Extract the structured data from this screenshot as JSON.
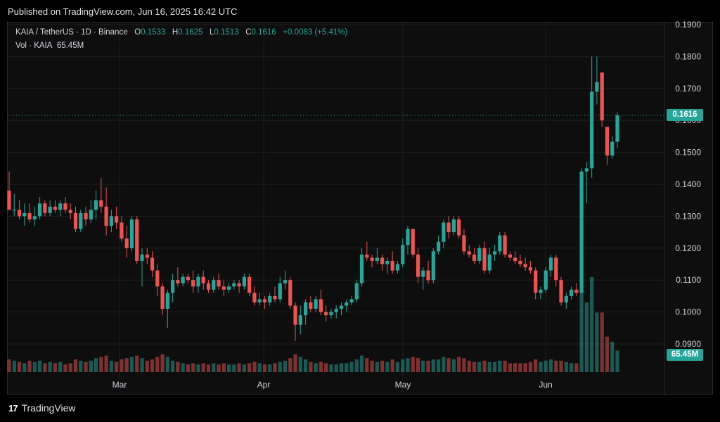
{
  "header": {
    "published": "Published on TradingView.com, Jun 16, 2025 16:42 UTC"
  },
  "legend": {
    "symbol": "KAIA / TetherUS · 1D · Binance",
    "o_label": "O",
    "o": "0.1533",
    "h_label": "H",
    "h": "0.1625",
    "l_label": "L",
    "l": "0.1513",
    "c_label": "C",
    "c": "0.1616",
    "change": "+0.0083 (+5.41%)",
    "vol_label": "Vol · KAIA",
    "vol_value": "65.45M"
  },
  "footer": {
    "brand": "TradingView",
    "logo": "17"
  },
  "colors": {
    "up": "#26a69a",
    "down": "#ef5350",
    "background": "#0e0e0e",
    "grid": "#1f1f1f"
  },
  "chart_data": {
    "type": "candlestick",
    "title": "KAIA / TetherUS · 1D · Binance",
    "y_ticks": [
      "0.1900",
      "0.1800",
      "0.1700",
      "0.1600",
      "0.1500",
      "0.1400",
      "0.1300",
      "0.1200",
      "0.1100",
      "0.1000",
      "0.0900"
    ],
    "ylim": [
      0.085,
      0.1925
    ],
    "x_ticks": [
      "Mar",
      "Apr",
      "May",
      "Jun"
    ],
    "last_price": "0.1616",
    "last_volume": "65.45M",
    "candles_ohlcv": [
      [
        0.138,
        0.144,
        0.133,
        0.132,
        10
      ],
      [
        0.132,
        0.137,
        0.13,
        0.132,
        9
      ],
      [
        0.132,
        0.135,
        0.129,
        0.13,
        8
      ],
      [
        0.13,
        0.134,
        0.127,
        0.131,
        7
      ],
      [
        0.131,
        0.134,
        0.128,
        0.129,
        9
      ],
      [
        0.129,
        0.133,
        0.127,
        0.13,
        8
      ],
      [
        0.13,
        0.136,
        0.129,
        0.134,
        9
      ],
      [
        0.134,
        0.135,
        0.13,
        0.131,
        7
      ],
      [
        0.131,
        0.135,
        0.13,
        0.133,
        8
      ],
      [
        0.133,
        0.135,
        0.131,
        0.132,
        7
      ],
      [
        0.132,
        0.135,
        0.13,
        0.134,
        8
      ],
      [
        0.134,
        0.136,
        0.131,
        0.132,
        6
      ],
      [
        0.132,
        0.134,
        0.129,
        0.131,
        7
      ],
      [
        0.131,
        0.133,
        0.125,
        0.126,
        10
      ],
      [
        0.126,
        0.132,
        0.125,
        0.131,
        9
      ],
      [
        0.131,
        0.133,
        0.127,
        0.129,
        8
      ],
      [
        0.129,
        0.135,
        0.128,
        0.132,
        9
      ],
      [
        0.132,
        0.138,
        0.129,
        0.135,
        11
      ],
      [
        0.135,
        0.142,
        0.131,
        0.133,
        12
      ],
      [
        0.133,
        0.139,
        0.124,
        0.127,
        13
      ],
      [
        0.127,
        0.132,
        0.125,
        0.13,
        9
      ],
      [
        0.13,
        0.133,
        0.126,
        0.128,
        8
      ],
      [
        0.128,
        0.13,
        0.122,
        0.123,
        10
      ],
      [
        0.123,
        0.127,
        0.117,
        0.12,
        11
      ],
      [
        0.12,
        0.13,
        0.119,
        0.129,
        12
      ],
      [
        0.129,
        0.13,
        0.115,
        0.116,
        13
      ],
      [
        0.116,
        0.12,
        0.108,
        0.118,
        11
      ],
      [
        0.118,
        0.12,
        0.115,
        0.117,
        9
      ],
      [
        0.117,
        0.119,
        0.111,
        0.113,
        10
      ],
      [
        0.113,
        0.115,
        0.105,
        0.108,
        12
      ],
      [
        0.108,
        0.109,
        0.099,
        0.101,
        14
      ],
      [
        0.101,
        0.107,
        0.095,
        0.106,
        12
      ],
      [
        0.106,
        0.112,
        0.103,
        0.11,
        9
      ],
      [
        0.11,
        0.114,
        0.108,
        0.109,
        8
      ],
      [
        0.109,
        0.112,
        0.108,
        0.111,
        7
      ],
      [
        0.111,
        0.112,
        0.109,
        0.11,
        6
      ],
      [
        0.11,
        0.113,
        0.106,
        0.108,
        7
      ],
      [
        0.108,
        0.112,
        0.106,
        0.111,
        6
      ],
      [
        0.111,
        0.113,
        0.107,
        0.109,
        7
      ],
      [
        0.109,
        0.11,
        0.106,
        0.107,
        6
      ],
      [
        0.107,
        0.111,
        0.106,
        0.11,
        7
      ],
      [
        0.11,
        0.112,
        0.107,
        0.108,
        6
      ],
      [
        0.108,
        0.11,
        0.105,
        0.107,
        7
      ],
      [
        0.107,
        0.109,
        0.106,
        0.108,
        6
      ],
      [
        0.108,
        0.11,
        0.107,
        0.109,
        6
      ],
      [
        0.109,
        0.11,
        0.106,
        0.108,
        7
      ],
      [
        0.108,
        0.112,
        0.107,
        0.111,
        6
      ],
      [
        0.111,
        0.112,
        0.105,
        0.106,
        7
      ],
      [
        0.106,
        0.108,
        0.102,
        0.103,
        8
      ],
      [
        0.103,
        0.106,
        0.102,
        0.104,
        7
      ],
      [
        0.104,
        0.105,
        0.101,
        0.103,
        6
      ],
      [
        0.103,
        0.106,
        0.102,
        0.105,
        6
      ],
      [
        0.105,
        0.108,
        0.103,
        0.104,
        7
      ],
      [
        0.104,
        0.111,
        0.103,
        0.109,
        8
      ],
      [
        0.109,
        0.113,
        0.107,
        0.11,
        9
      ],
      [
        0.11,
        0.111,
        0.101,
        0.102,
        11
      ],
      [
        0.102,
        0.103,
        0.091,
        0.096,
        14
      ],
      [
        0.096,
        0.102,
        0.093,
        0.099,
        12
      ],
      [
        0.099,
        0.104,
        0.096,
        0.103,
        10
      ],
      [
        0.103,
        0.105,
        0.1,
        0.101,
        8
      ],
      [
        0.101,
        0.105,
        0.1,
        0.104,
        7
      ],
      [
        0.104,
        0.107,
        0.099,
        0.1,
        8
      ],
      [
        0.1,
        0.102,
        0.097,
        0.099,
        7
      ],
      [
        0.099,
        0.101,
        0.098,
        0.1,
        6
      ],
      [
        0.1,
        0.102,
        0.098,
        0.101,
        6
      ],
      [
        0.101,
        0.103,
        0.099,
        0.102,
        7
      ],
      [
        0.102,
        0.104,
        0.1,
        0.103,
        7
      ],
      [
        0.103,
        0.105,
        0.102,
        0.104,
        8
      ],
      [
        0.104,
        0.11,
        0.103,
        0.109,
        10
      ],
      [
        0.109,
        0.12,
        0.108,
        0.118,
        13
      ],
      [
        0.118,
        0.122,
        0.116,
        0.117,
        11
      ],
      [
        0.117,
        0.118,
        0.114,
        0.116,
        9
      ],
      [
        0.116,
        0.12,
        0.115,
        0.117,
        8
      ],
      [
        0.117,
        0.118,
        0.113,
        0.115,
        9
      ],
      [
        0.115,
        0.117,
        0.112,
        0.116,
        8
      ],
      [
        0.116,
        0.119,
        0.112,
        0.113,
        10
      ],
      [
        0.113,
        0.116,
        0.112,
        0.115,
        8
      ],
      [
        0.115,
        0.123,
        0.114,
        0.121,
        10
      ],
      [
        0.121,
        0.127,
        0.118,
        0.126,
        11
      ],
      [
        0.126,
        0.126,
        0.117,
        0.118,
        12
      ],
      [
        0.118,
        0.12,
        0.109,
        0.111,
        11
      ],
      [
        0.111,
        0.114,
        0.107,
        0.113,
        9
      ],
      [
        0.113,
        0.116,
        0.109,
        0.11,
        9
      ],
      [
        0.11,
        0.12,
        0.109,
        0.119,
        10
      ],
      [
        0.119,
        0.124,
        0.118,
        0.122,
        10
      ],
      [
        0.122,
        0.129,
        0.12,
        0.128,
        12
      ],
      [
        0.128,
        0.13,
        0.123,
        0.125,
        11
      ],
      [
        0.125,
        0.13,
        0.124,
        0.129,
        10
      ],
      [
        0.129,
        0.13,
        0.123,
        0.124,
        12
      ],
      [
        0.124,
        0.126,
        0.118,
        0.119,
        11
      ],
      [
        0.119,
        0.121,
        0.117,
        0.118,
        9
      ],
      [
        0.118,
        0.12,
        0.115,
        0.116,
        8
      ],
      [
        0.116,
        0.121,
        0.115,
        0.12,
        8
      ],
      [
        0.12,
        0.122,
        0.112,
        0.113,
        9
      ],
      [
        0.113,
        0.12,
        0.112,
        0.118,
        8
      ],
      [
        0.118,
        0.121,
        0.116,
        0.119,
        8
      ],
      [
        0.119,
        0.125,
        0.118,
        0.124,
        9
      ],
      [
        0.124,
        0.125,
        0.117,
        0.118,
        9
      ],
      [
        0.118,
        0.119,
        0.116,
        0.117,
        7
      ],
      [
        0.117,
        0.119,
        0.115,
        0.116,
        7
      ],
      [
        0.116,
        0.118,
        0.114,
        0.115,
        7
      ],
      [
        0.115,
        0.117,
        0.113,
        0.114,
        7
      ],
      [
        0.114,
        0.116,
        0.112,
        0.113,
        8
      ],
      [
        0.113,
        0.114,
        0.104,
        0.106,
        10
      ],
      [
        0.106,
        0.108,
        0.104,
        0.107,
        8
      ],
      [
        0.107,
        0.114,
        0.106,
        0.113,
        9
      ],
      [
        0.113,
        0.118,
        0.111,
        0.117,
        10
      ],
      [
        0.117,
        0.118,
        0.108,
        0.11,
        9
      ],
      [
        0.11,
        0.111,
        0.102,
        0.103,
        9
      ],
      [
        0.103,
        0.106,
        0.101,
        0.105,
        8
      ],
      [
        0.105,
        0.108,
        0.104,
        0.107,
        7
      ],
      [
        0.107,
        0.109,
        0.105,
        0.106,
        7
      ],
      [
        0.106,
        0.145,
        0.106,
        0.144,
        68
      ],
      [
        0.144,
        0.147,
        0.134,
        0.145,
        55
      ],
      [
        0.145,
        0.18,
        0.142,
        0.169,
        75
      ],
      [
        0.169,
        0.18,
        0.165,
        0.172,
        47
      ],
      [
        0.175,
        0.175,
        0.158,
        0.16,
        47
      ],
      [
        0.158,
        0.158,
        0.146,
        0.149,
        28
      ],
      [
        0.149,
        0.155,
        0.148,
        0.1533,
        24
      ],
      [
        0.1533,
        0.1625,
        0.1513,
        0.1616,
        17
      ]
    ],
    "volume_note": "last column is relative volume"
  }
}
